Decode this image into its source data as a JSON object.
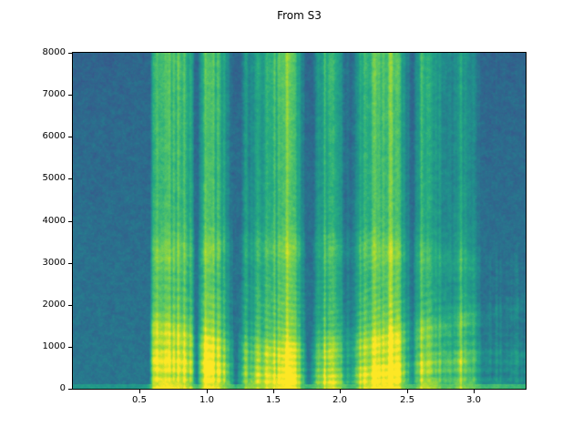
{
  "figure": {
    "title": "From S3",
    "background": "#ffffff",
    "text_color": "#000000"
  },
  "chart_data": {
    "type": "heatmap",
    "subtype": "audio-spectrogram",
    "title": "From S3",
    "xlabel": "",
    "ylabel": "",
    "xlim": [
      0.0,
      3.39
    ],
    "ylim": [
      0,
      8000
    ],
    "xtick_values": [
      0.5,
      1.0,
      1.5,
      2.0,
      2.5,
      3.0
    ],
    "xtick_labels": [
      "0.5",
      "1.0",
      "1.5",
      "2.0",
      "2.5",
      "3.0"
    ],
    "ytick_values": [
      0,
      1000,
      2000,
      3000,
      4000,
      5000,
      6000,
      7000,
      8000
    ],
    "ytick_labels": [
      "0",
      "1000",
      "2000",
      "3000",
      "4000",
      "5000",
      "6000",
      "7000",
      "8000"
    ],
    "grid": false,
    "legend": null,
    "colormap": {
      "name": "viridis",
      "stops": [
        [
          0.0,
          "#440154"
        ],
        [
          0.125,
          "#472c7a"
        ],
        [
          0.25,
          "#3b528b"
        ],
        [
          0.375,
          "#2b718e"
        ],
        [
          0.5,
          "#21918c"
        ],
        [
          0.625,
          "#27ad81"
        ],
        [
          0.75,
          "#5ec962"
        ],
        [
          0.875,
          "#aadc32"
        ],
        [
          1.0,
          "#fde725"
        ]
      ]
    },
    "description": "Speech spectrogram: background noise (silence) from 0 to ~0.57 s, voiced speech with harmonics, formants and bright low-frequency energy from ~0.57 to ~3.05 s, quieter tail until 3.39 s.",
    "silence_level": 0.4,
    "noise_amp": 0.17,
    "bottom_band_hz": 270,
    "envelope": [
      [
        0.0,
        0.0,
        0.0
      ],
      [
        0.55,
        0.0,
        0.0
      ],
      [
        0.6,
        0.92,
        0.55
      ],
      [
        0.68,
        1.0,
        0.75
      ],
      [
        0.8,
        0.95,
        0.8
      ],
      [
        0.88,
        0.85,
        0.55
      ],
      [
        0.93,
        0.5,
        0.25
      ],
      [
        0.98,
        0.9,
        0.6
      ],
      [
        1.08,
        0.95,
        0.75
      ],
      [
        1.17,
        0.75,
        0.5
      ],
      [
        1.22,
        0.38,
        0.2
      ],
      [
        1.3,
        0.8,
        0.5
      ],
      [
        1.42,
        0.85,
        0.55
      ],
      [
        1.52,
        0.95,
        0.9
      ],
      [
        1.62,
        1.0,
        0.9
      ],
      [
        1.7,
        0.8,
        0.6
      ],
      [
        1.76,
        0.4,
        0.2
      ],
      [
        1.84,
        0.75,
        0.6
      ],
      [
        1.93,
        0.95,
        0.85
      ],
      [
        2.02,
        0.7,
        0.5
      ],
      [
        2.08,
        0.5,
        0.3
      ],
      [
        2.15,
        0.85,
        0.6
      ],
      [
        2.25,
        0.95,
        0.8
      ],
      [
        2.38,
        1.0,
        0.75
      ],
      [
        2.48,
        0.8,
        0.55
      ],
      [
        2.55,
        0.55,
        0.3
      ],
      [
        2.62,
        0.9,
        0.8
      ],
      [
        2.72,
        0.85,
        0.7
      ],
      [
        2.8,
        0.6,
        0.4
      ],
      [
        2.88,
        0.8,
        0.5
      ],
      [
        3.0,
        0.75,
        0.45
      ],
      [
        3.08,
        0.5,
        0.3
      ],
      [
        3.18,
        0.55,
        0.35
      ],
      [
        3.3,
        0.5,
        0.3
      ],
      [
        3.39,
        0.45,
        0.25
      ]
    ],
    "stripes": {
      "f0_base": 185,
      "f0_var": 35,
      "f0_rate": 2.6,
      "amp": 0.06,
      "decay_hz": 2200
    },
    "formants": [
      {
        "base": 500,
        "range": 280,
        "rate": 2.1,
        "phase": 1.0,
        "bw": 260,
        "amp": 0.12
      },
      {
        "base": 1500,
        "range": 650,
        "rate": 1.35,
        "phase": 2.5,
        "bw": 320,
        "amp": 0.12
      },
      {
        "base": 2900,
        "range": 450,
        "rate": 0.85,
        "phase": 0.3,
        "bw": 380,
        "amp": 0.09
      }
    ]
  }
}
